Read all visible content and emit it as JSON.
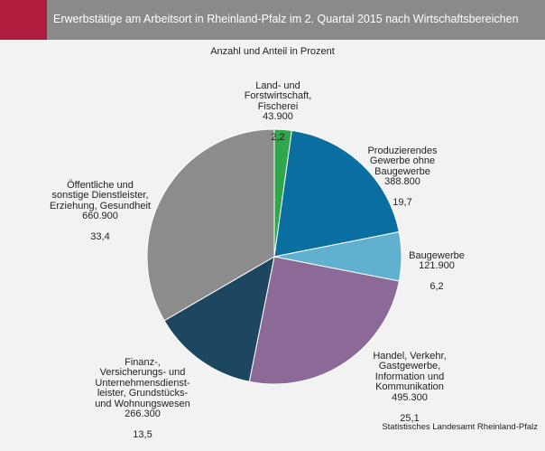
{
  "header": {
    "title": "Erwerbstätige am Arbeitsort in Rheinland-Pfalz im 2. Quartal 2015 nach Wirtschaftsbereichen",
    "accent_color": "#b01c3d",
    "bar_color": "#8a8a8a"
  },
  "subtitle": "Anzahl und Anteil in Prozent",
  "source": "Statistisches Landesamt Rheinland-Pfalz",
  "chart_data": {
    "type": "pie",
    "title": "Erwerbstätige am Arbeitsort in Rheinland-Pfalz im 2. Quartal 2015 nach Wirtschaftsbereichen",
    "subtitle": "Anzahl und Anteil in Prozent",
    "start_angle": "12 o'clock, clockwise",
    "slices": [
      {
        "label": "Land- und\nForstwirtschaft,\nFischerei",
        "count": "43.900",
        "share": "2,2",
        "value": 2.2,
        "color": "#2ea84a"
      },
      {
        "label": "Produzierendes\nGewerbe ohne\nBaugewerbe",
        "count": "388.800",
        "share": "19,7",
        "value": 19.7,
        "color": "#0a6fa0"
      },
      {
        "label": "Baugewerbe",
        "count": "121.900",
        "share": "6,2",
        "value": 6.2,
        "color": "#62b0d0"
      },
      {
        "label": "Handel, Verkehr,\nGastgewerbe,\nInformation und\nKommunikation",
        "count": "495.300",
        "share": "25,1",
        "value": 25.1,
        "color": "#8c6a98"
      },
      {
        "label": "Finanz-,\nVersicherungs- und\nUnternehmensdienst-\nleister, Grundstücks-\nund Wohnungswesen",
        "count": "266.300",
        "share": "13,5",
        "value": 13.5,
        "color": "#1d4760"
      },
      {
        "label": "Öffentliche und\nsonstige Dienstleister,\nErziehung, Gesundheit",
        "count": "660.900",
        "share": "33,4",
        "value": 33.4,
        "color": "#8c8c8c"
      }
    ]
  }
}
